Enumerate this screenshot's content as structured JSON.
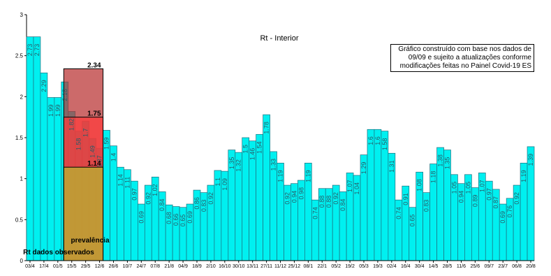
{
  "chart_data": {
    "type": "bar",
    "title": "Rt - Interior",
    "note_lines": [
      "Gráfico construído com base nos dados de",
      "09/09 e sujeito a atualizações conforme",
      "modificações feitas no Painel Covid-19 ES"
    ],
    "ylim": [
      0,
      3
    ],
    "y_ticks": [
      "0",
      "0.5",
      "1",
      "1.5",
      "2",
      "2.5",
      "3"
    ],
    "x_tick_labels": [
      "03/4",
      "17/4",
      "01/5",
      "15/5",
      "29/5",
      "12/6",
      "26/6",
      "10/7",
      "24/7",
      "07/8",
      "21/8",
      "04/9",
      "18/9",
      "2/10",
      "16/10",
      "30/10",
      "13/11",
      "27/11",
      "11/12",
      "25/12",
      "08/1",
      "22/1",
      "05/2",
      "19/2",
      "05/3",
      "19/3",
      "02/4",
      "16/4",
      "30/4",
      "14/5",
      "28/5",
      "11/6",
      "25/6",
      "09/7",
      "23/7",
      "06/8",
      "20/8"
    ],
    "values": [
      2.73,
      2.73,
      2.29,
      1.99,
      1.99,
      2.18,
      1.82,
      1.58,
      1.7,
      1.49,
      1.37,
      1.59,
      1.4,
      1.14,
      1.11,
      0.97,
      0.69,
      0.92,
      1.02,
      0.84,
      0.68,
      0.66,
      0.65,
      0.69,
      0.86,
      0.83,
      0.92,
      1.1,
      1.09,
      1.35,
      1.32,
      1.5,
      1.46,
      1.54,
      1.78,
      1.33,
      1.19,
      0.92,
      0.94,
      0.98,
      1.19,
      0.74,
      0.88,
      0.88,
      0.92,
      0.84,
      1.07,
      1.04,
      1.29,
      1.6,
      1.6,
      1.58,
      1.31,
      0.74,
      0.91,
      0.65,
      1.08,
      0.83,
      1.18,
      1.38,
      1.35,
      1.05,
      0.94,
      1.05,
      0.89,
      1.07,
      0.97,
      0.87,
      0.69,
      0.76,
      0.92,
      1.19,
      1.39
    ],
    "value_labels": [
      "2.73",
      "2.73",
      "2.29",
      "1.99",
      "1.99",
      "2.18",
      "1.82",
      "1.58",
      "1.7",
      "1.49",
      "1.37",
      "1.59",
      "1.4",
      "1.14",
      "1.11",
      "0.97",
      "0.69",
      "0.92",
      "1.02",
      "0.84",
      "0.68",
      "0.66",
      "0.65",
      "0.69",
      "0.86",
      "0.83",
      "0.92",
      "1.1",
      "1.09",
      "1.35",
      "1.32",
      "1.5",
      "1.46",
      "1.54",
      "1.78",
      "1.33",
      "1.19",
      "0.92",
      "0.94",
      "0.98",
      "1.19",
      "0.74",
      "0.88",
      "0.88",
      "0.92",
      "0.84",
      "1.07",
      "1.04",
      "1.29",
      "1.6",
      "1.6",
      "1.58",
      "1.31",
      "0.74",
      "0.91",
      "0.65",
      "1.08",
      "0.83",
      "1.18",
      "1.38",
      "1.35",
      "1.05",
      "0.94",
      "1.05",
      "0.89",
      "1.07",
      "0.97",
      "0.87",
      "0.69",
      "0.76",
      "0.92",
      "1.19",
      "1.39"
    ],
    "prevalence_bands": [
      {
        "value": 2.34,
        "label": "2.34",
        "color": "#b83030"
      },
      {
        "value": 1.75,
        "label": "1.75",
        "color": "#ff3b3b"
      },
      {
        "value": 1.14,
        "label": "1.14",
        "color": "#b5b830"
      }
    ],
    "band_start_bar": 5,
    "band_end_bar": 10,
    "annotations": {
      "prevalence": "prevalência",
      "observed": "Rt dados observados"
    },
    "colors": {
      "bar_fill": "#00f0f0",
      "bar_stroke": "#1f6f7f",
      "axis": "#000000"
    }
  }
}
